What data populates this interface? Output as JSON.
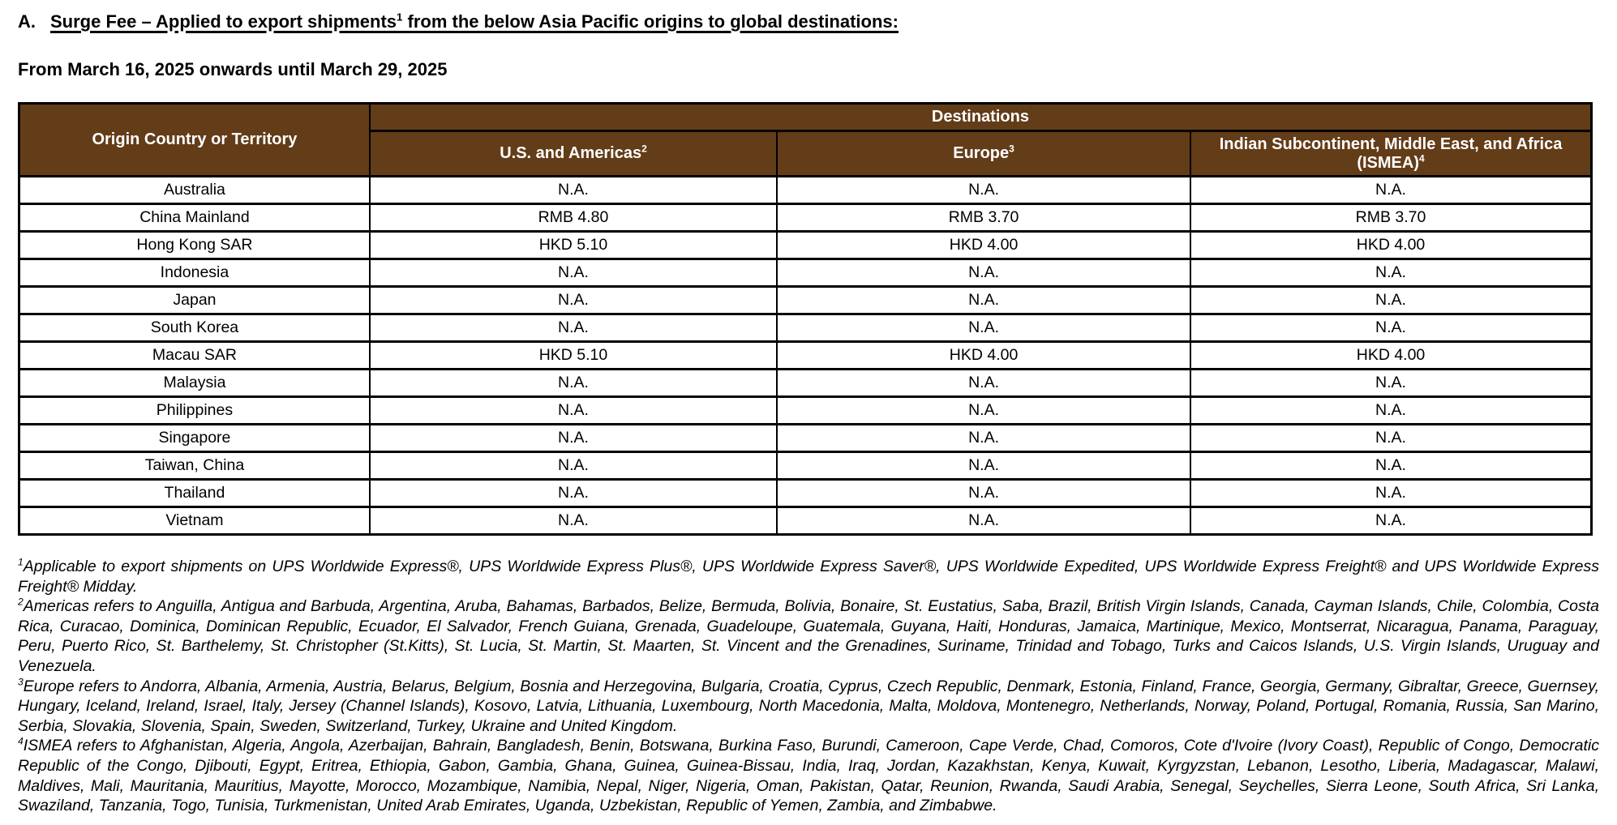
{
  "header": {
    "section_label": "A.",
    "title_before": "Surge Fee – Applied to export shipments",
    "title_sup": "1",
    "title_after": " from the below Asia Pacific origins to global destinations:",
    "date_range": "From March 16, 2025 onwards until March 29, 2025"
  },
  "table": {
    "header_bg_color": "#633C18",
    "header_text_color": "#ffffff",
    "origin_header": "Origin Country or Territory",
    "destinations_header": "Destinations",
    "columns": [
      {
        "label": "U.S. and Americas",
        "sup": "2"
      },
      {
        "label": "Europe",
        "sup": "3"
      },
      {
        "label": "Indian Subcontinent, Middle East, and Africa (ISMEA)",
        "sup": "4"
      }
    ],
    "rows": [
      {
        "origin": "Australia",
        "values": [
          "N.A.",
          "N.A.",
          "N.A."
        ]
      },
      {
        "origin": "China Mainland",
        "values": [
          "RMB 4.80",
          "RMB 3.70",
          "RMB 3.70"
        ]
      },
      {
        "origin": "Hong Kong SAR",
        "values": [
          "HKD 5.10",
          "HKD 4.00",
          "HKD 4.00"
        ]
      },
      {
        "origin": "Indonesia",
        "values": [
          "N.A.",
          "N.A.",
          "N.A."
        ]
      },
      {
        "origin": "Japan",
        "values": [
          "N.A.",
          "N.A.",
          "N.A."
        ]
      },
      {
        "origin": "South Korea",
        "values": [
          "N.A.",
          "N.A.",
          "N.A."
        ]
      },
      {
        "origin": "Macau SAR",
        "values": [
          "HKD 5.10",
          "HKD 4.00",
          "HKD 4.00"
        ]
      },
      {
        "origin": "Malaysia",
        "values": [
          "N.A.",
          "N.A.",
          "N.A."
        ]
      },
      {
        "origin": "Philippines",
        "values": [
          "N.A.",
          "N.A.",
          "N.A."
        ]
      },
      {
        "origin": "Singapore",
        "values": [
          "N.A.",
          "N.A.",
          "N.A."
        ]
      },
      {
        "origin": "Taiwan, China",
        "values": [
          "N.A.",
          "N.A.",
          "N.A."
        ]
      },
      {
        "origin": "Thailand",
        "values": [
          "N.A.",
          "N.A.",
          "N.A."
        ]
      },
      {
        "origin": "Vietnam",
        "values": [
          "N.A.",
          "N.A.",
          "N.A."
        ]
      }
    ]
  },
  "footnotes": [
    {
      "sup": "1",
      "text": "Applicable to export shipments on UPS Worldwide Express®, UPS Worldwide Express Plus®, UPS Worldwide Express Saver®, UPS Worldwide Expedited, UPS Worldwide Express Freight® and UPS Worldwide Express Freight® Midday."
    },
    {
      "sup": "2",
      "text": "Americas refers to Anguilla, Antigua and Barbuda, Argentina, Aruba, Bahamas, Barbados, Belize, Bermuda, Bolivia, Bonaire, St. Eustatius, Saba, Brazil, British Virgin Islands, Canada, Cayman Islands, Chile, Colombia, Costa Rica, Curacao, Dominica, Dominican Republic, Ecuador, El Salvador, French Guiana, Grenada, Guadeloupe, Guatemala, Guyana, Haiti, Honduras, Jamaica, Martinique, Mexico, Montserrat, Nicaragua, Panama, Paraguay, Peru, Puerto Rico, St. Barthelemy, St. Christopher (St.Kitts),  St. Lucia, St. Martin, St. Maarten, St. Vincent and the Grenadines, Suriname, Trinidad and Tobago, Turks and Caicos Islands, U.S. Virgin Islands, Uruguay and Venezuela."
    },
    {
      "sup": "3",
      "text": "Europe refers to Andorra, Albania, Armenia, Austria, Belarus, Belgium, Bosnia and Herzegovina, Bulgaria, Croatia, Cyprus, Czech Republic, Denmark, Estonia, Finland, France, Georgia, Germany, Gibraltar, Greece, Guernsey, Hungary, Iceland, Ireland, Israel, Italy, Jersey (Channel Islands), Kosovo, Latvia, Lithuania, Luxembourg, North Macedonia, Malta, Moldova, Montenegro, Netherlands, Norway, Poland, Portugal, Romania, Russia, San Marino, Serbia, Slovakia, Slovenia, Spain, Sweden, Switzerland, Turkey, Ukraine and United Kingdom."
    },
    {
      "sup": "4",
      "text": "ISMEA refers to Afghanistan, Algeria, Angola, Azerbaijan, Bahrain, Bangladesh, Benin, Botswana, Burkina Faso, Burundi, Cameroon, Cape Verde, Chad, Comoros, Cote d'Ivoire (Ivory Coast), Republic of Congo, Democratic Republic of the Congo, Djibouti, Egypt, Eritrea, Ethiopia, Gabon, Gambia, Ghana, Guinea, Guinea-Bissau, India, Iraq, Jordan, Kazakhstan, Kenya, Kuwait, Kyrgyzstan, Lebanon, Lesotho, Liberia, Madagascar, Malawi, Maldives, Mali, Mauritania, Mauritius, Mayotte, Morocco, Mozambique, Namibia, Nepal, Niger, Nigeria, Oman, Pakistan, Qatar, Reunion, Rwanda, Saudi Arabia, Senegal, Seychelles, Sierra Leone, South Africa, Sri Lanka, Swaziland, Tanzania, Togo, Tunisia, Turkmenistan, United Arab Emirates, Uganda, Uzbekistan, Republic of Yemen, Zambia, and Zimbabwe."
    }
  ]
}
